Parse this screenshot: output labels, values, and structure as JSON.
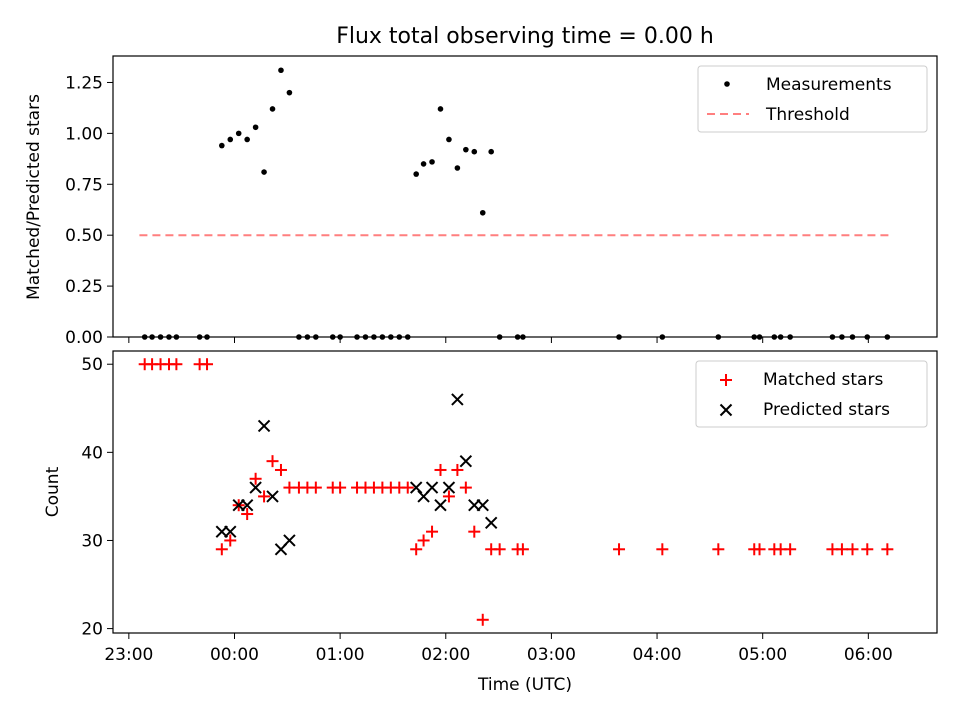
{
  "title": "Flux total observing time = 0.00 h",
  "chart_data": [
    {
      "type": "scatter",
      "ylabel": "Matched/Predicted stars",
      "ylim": [
        0,
        1.38
      ],
      "xlim_hours": [
        -1.15,
        6.65
      ],
      "yticks": [
        0,
        0.25,
        0.5,
        0.75,
        1.0,
        1.25
      ],
      "ytick_labels": [
        "0.00",
        "0.25",
        "0.50",
        "0.75",
        "1.00",
        "1.25"
      ],
      "legend_position": "top-right",
      "colors": {
        "measurements": "#000000",
        "threshold": "#ff7f7f"
      },
      "legend": [
        "Measurements",
        "Threshold"
      ],
      "measurements": [
        [
          -0.85,
          0
        ],
        [
          -0.78,
          0
        ],
        [
          -0.7,
          0
        ],
        [
          -0.62,
          0
        ],
        [
          -0.55,
          0
        ],
        [
          -0.33,
          0
        ],
        [
          -0.26,
          0
        ],
        [
          -0.12,
          0.94
        ],
        [
          -0.04,
          0.97
        ],
        [
          0.04,
          1.0
        ],
        [
          0.12,
          0.97
        ],
        [
          0.2,
          1.03
        ],
        [
          0.28,
          0.81
        ],
        [
          0.36,
          1.12
        ],
        [
          0.44,
          1.31
        ],
        [
          0.52,
          1.2
        ],
        [
          0.61,
          0
        ],
        [
          0.69,
          0
        ],
        [
          0.77,
          0
        ],
        [
          0.93,
          0
        ],
        [
          1.0,
          0
        ],
        [
          1.16,
          0
        ],
        [
          1.24,
          0
        ],
        [
          1.32,
          0
        ],
        [
          1.4,
          0
        ],
        [
          1.48,
          0
        ],
        [
          1.56,
          0
        ],
        [
          1.64,
          0
        ],
        [
          1.72,
          0.8
        ],
        [
          1.79,
          0.85
        ],
        [
          1.87,
          0.86
        ],
        [
          1.95,
          1.12
        ],
        [
          2.03,
          0.97
        ],
        [
          2.11,
          0.83
        ],
        [
          2.19,
          0.92
        ],
        [
          2.27,
          0.91
        ],
        [
          2.35,
          0.61
        ],
        [
          2.43,
          0.91
        ],
        [
          2.51,
          0
        ],
        [
          2.68,
          0
        ],
        [
          2.73,
          0
        ],
        [
          3.64,
          0
        ],
        [
          4.05,
          0
        ],
        [
          4.58,
          0
        ],
        [
          4.92,
          0
        ],
        [
          4.97,
          0
        ],
        [
          5.11,
          0
        ],
        [
          5.17,
          0
        ],
        [
          5.26,
          0
        ],
        [
          5.66,
          0
        ],
        [
          5.75,
          0
        ],
        [
          5.85,
          0
        ],
        [
          5.99,
          0
        ],
        [
          6.18,
          0
        ]
      ],
      "threshold": {
        "y": 0.5,
        "x_start": -0.9,
        "x_end": 6.2
      }
    },
    {
      "type": "scatter",
      "xlabel": "Time (UTC)",
      "ylabel": "Count",
      "ylim": [
        19.5,
        51.5
      ],
      "xlim_hours": [
        -1.15,
        6.65
      ],
      "yticks": [
        20,
        30,
        40,
        50
      ],
      "ytick_labels": [
        "20",
        "30",
        "40",
        "50"
      ],
      "xticks_hours": [
        -1,
        0,
        1,
        2,
        3,
        4,
        5,
        6
      ],
      "xtick_labels": [
        "23:00",
        "00:00",
        "01:00",
        "02:00",
        "03:00",
        "04:00",
        "05:00",
        "06:00"
      ],
      "legend_position": "top-right",
      "colors": {
        "matched": "#ff0000",
        "predicted": "#000000"
      },
      "legend": [
        "Matched stars",
        "Predicted stars"
      ],
      "matched": [
        [
          -0.85,
          50
        ],
        [
          -0.78,
          50
        ],
        [
          -0.7,
          50
        ],
        [
          -0.62,
          50
        ],
        [
          -0.55,
          50
        ],
        [
          -0.33,
          50
        ],
        [
          -0.26,
          50
        ],
        [
          -0.12,
          29
        ],
        [
          -0.04,
          30
        ],
        [
          0.04,
          34
        ],
        [
          0.12,
          33
        ],
        [
          0.2,
          37
        ],
        [
          0.28,
          35
        ],
        [
          0.36,
          39
        ],
        [
          0.44,
          38
        ],
        [
          0.52,
          36
        ],
        [
          0.61,
          36
        ],
        [
          0.69,
          36
        ],
        [
          0.77,
          36
        ],
        [
          0.93,
          36
        ],
        [
          1.0,
          36
        ],
        [
          1.16,
          36
        ],
        [
          1.24,
          36
        ],
        [
          1.32,
          36
        ],
        [
          1.4,
          36
        ],
        [
          1.48,
          36
        ],
        [
          1.56,
          36
        ],
        [
          1.64,
          36
        ],
        [
          1.72,
          29
        ],
        [
          1.79,
          30
        ],
        [
          1.87,
          31
        ],
        [
          1.95,
          38
        ],
        [
          2.03,
          35
        ],
        [
          2.11,
          38
        ],
        [
          2.19,
          36
        ],
        [
          2.27,
          31
        ],
        [
          2.35,
          21
        ],
        [
          2.43,
          29
        ],
        [
          2.51,
          29
        ],
        [
          2.68,
          29
        ],
        [
          2.73,
          29
        ],
        [
          3.64,
          29
        ],
        [
          4.05,
          29
        ],
        [
          4.58,
          29
        ],
        [
          4.92,
          29
        ],
        [
          4.97,
          29
        ],
        [
          5.11,
          29
        ],
        [
          5.17,
          29
        ],
        [
          5.26,
          29
        ],
        [
          5.66,
          29
        ],
        [
          5.75,
          29
        ],
        [
          5.85,
          29
        ],
        [
          5.99,
          29
        ],
        [
          6.18,
          29
        ]
      ],
      "predicted": [
        [
          -0.12,
          31
        ],
        [
          -0.04,
          31
        ],
        [
          0.04,
          34
        ],
        [
          0.12,
          34
        ],
        [
          0.2,
          36
        ],
        [
          0.28,
          43
        ],
        [
          0.36,
          35
        ],
        [
          0.44,
          29
        ],
        [
          0.52,
          30
        ],
        [
          1.72,
          36
        ],
        [
          1.79,
          35
        ],
        [
          1.87,
          36
        ],
        [
          1.95,
          34
        ],
        [
          2.03,
          36
        ],
        [
          2.11,
          46
        ],
        [
          2.19,
          39
        ],
        [
          2.27,
          34
        ],
        [
          2.35,
          34
        ],
        [
          2.43,
          32
        ]
      ]
    }
  ]
}
